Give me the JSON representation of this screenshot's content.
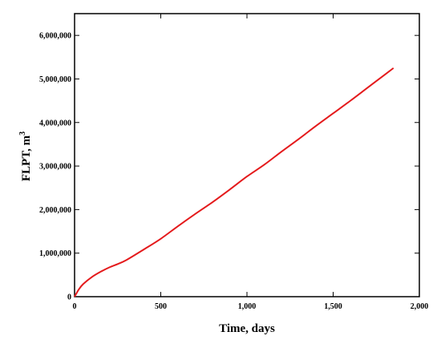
{
  "chart_data": {
    "type": "line",
    "xlabel": "Time, days",
    "ylabel": "FLPT, m",
    "ylabel_superscript": "3",
    "xlim": [
      0,
      2000
    ],
    "ylim": [
      0,
      6500000
    ],
    "x_ticks": [
      0,
      500,
      1000,
      1500,
      2000
    ],
    "x_tick_labels": [
      "0",
      "500",
      "1,000",
      "1,500",
      "2,000"
    ],
    "y_ticks": [
      0,
      1000000,
      2000000,
      3000000,
      4000000,
      5000000,
      6000000
    ],
    "y_tick_labels": [
      "0",
      "1,000,000",
      "2,000,000",
      "3,000,000",
      "4,000,000",
      "5,000,000",
      "6,000,000"
    ],
    "grid": false,
    "series": [
      {
        "color": "#e41a1c",
        "x": [
          0,
          25,
          50,
          100,
          150,
          200,
          250,
          300,
          400,
          500,
          600,
          700,
          800,
          900,
          1000,
          1100,
          1200,
          1300,
          1400,
          1500,
          1600,
          1700,
          1800,
          1850
        ],
        "y": [
          0,
          170000,
          290000,
          450000,
          570000,
          670000,
          750000,
          840000,
          1080000,
          1330000,
          1620000,
          1900000,
          2170000,
          2460000,
          2760000,
          3030000,
          3330000,
          3620000,
          3920000,
          4210000,
          4500000,
          4800000,
          5100000,
          5250000
        ]
      }
    ]
  }
}
